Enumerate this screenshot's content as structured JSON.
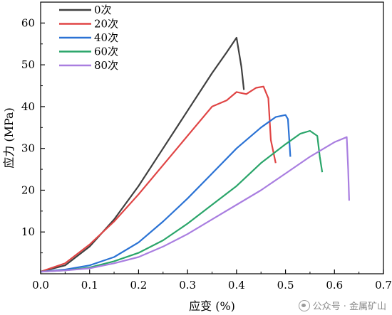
{
  "chart_data": {
    "type": "line",
    "xlabel": "应变 (%)",
    "ylabel": "应力 (MPa)",
    "xlim": [
      0.0,
      0.7
    ],
    "ylim": [
      0,
      65
    ],
    "x_ticks": [
      "0.0",
      "0.1",
      "0.2",
      "0.3",
      "0.4",
      "0.5",
      "0.6",
      "0.7"
    ],
    "y_ticks": [
      "10",
      "20",
      "30",
      "40",
      "50",
      "60"
    ],
    "grid": false,
    "legend_position": "top-left",
    "series": [
      {
        "name": "0次",
        "color": "#404040",
        "x": [
          0.0,
          0.05,
          0.1,
          0.15,
          0.2,
          0.25,
          0.3,
          0.35,
          0.38,
          0.4,
          0.405,
          0.41,
          0.415
        ],
        "y": [
          0.5,
          2,
          6.5,
          13,
          21,
          30,
          39,
          48,
          53,
          56.5,
          53,
          49.5,
          44
        ]
      },
      {
        "name": "20次",
        "color": "#e04545",
        "x": [
          0.0,
          0.05,
          0.1,
          0.15,
          0.2,
          0.25,
          0.3,
          0.35,
          0.38,
          0.4,
          0.42,
          0.44,
          0.455,
          0.465,
          0.47,
          0.48
        ],
        "y": [
          0.5,
          2.5,
          7,
          12.5,
          19,
          26,
          33,
          40,
          41.5,
          43.5,
          43,
          44.5,
          44.8,
          42,
          32,
          26.5
        ]
      },
      {
        "name": "40次",
        "color": "#2a72d4",
        "x": [
          0.0,
          0.05,
          0.1,
          0.15,
          0.2,
          0.25,
          0.3,
          0.35,
          0.4,
          0.45,
          0.48,
          0.5,
          0.505,
          0.51
        ],
        "y": [
          0.5,
          1,
          2,
          4,
          7.5,
          12.5,
          18,
          24,
          30,
          35,
          37.5,
          38,
          37,
          28
        ]
      },
      {
        "name": "60次",
        "color": "#2aa56a",
        "x": [
          0.0,
          0.05,
          0.1,
          0.15,
          0.2,
          0.25,
          0.3,
          0.35,
          0.4,
          0.45,
          0.5,
          0.53,
          0.55,
          0.565,
          0.57,
          0.575
        ],
        "y": [
          0.5,
          0.8,
          1.5,
          3,
          5,
          8,
          12,
          16.5,
          21,
          26.5,
          31,
          33.5,
          34.2,
          33,
          28,
          24.3
        ]
      },
      {
        "name": "80次",
        "color": "#a97ee0",
        "x": [
          0.0,
          0.05,
          0.1,
          0.15,
          0.2,
          0.25,
          0.3,
          0.35,
          0.4,
          0.45,
          0.5,
          0.55,
          0.6,
          0.625,
          0.628,
          0.63
        ],
        "y": [
          0.5,
          0.8,
          1.3,
          2.5,
          4,
          6.5,
          9.5,
          13,
          16.5,
          20,
          24,
          28,
          31.5,
          32.7,
          25,
          17.5
        ]
      }
    ]
  },
  "watermark": {
    "text": "公众号 · 金属矿山"
  }
}
